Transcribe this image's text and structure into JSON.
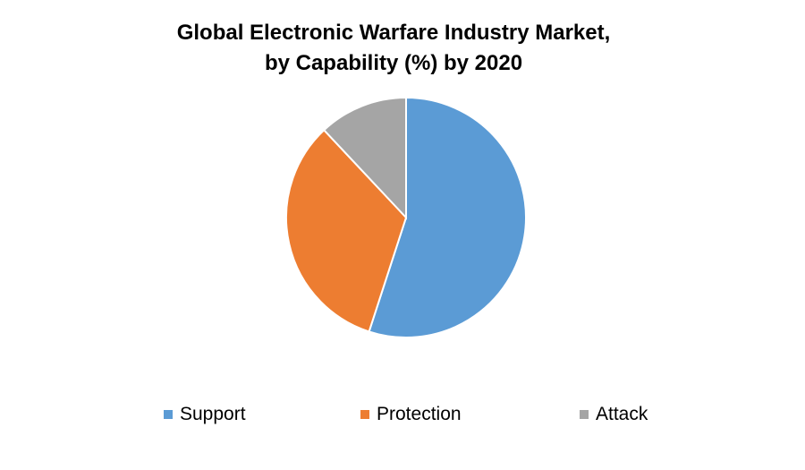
{
  "chart_data": {
    "type": "pie",
    "title_lines": [
      "Global Electronic Warfare Industry Market,",
      "by Capability (%) by 2020"
    ],
    "categories": [
      "Support",
      "Protection",
      "Attack"
    ],
    "values": [
      55,
      33,
      12
    ],
    "colors": [
      "#5B9BD5",
      "#ED7D31",
      "#A5A5A5"
    ],
    "start_angle": "top, clockwise",
    "legend_position": "bottom"
  }
}
